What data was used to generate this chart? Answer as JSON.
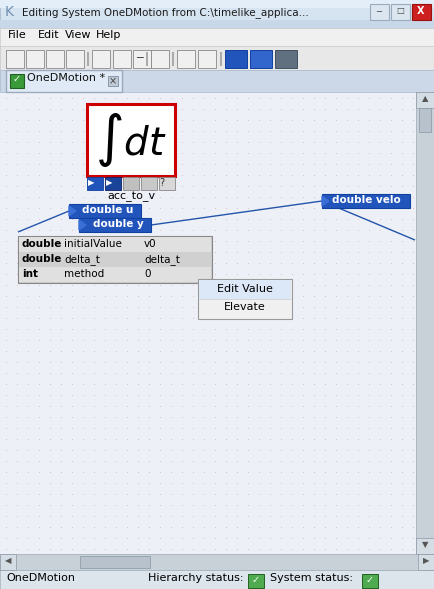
{
  "title_bar": "Editing System OneDMotion from C:\\timelike_applica...",
  "menu_items": [
    "File",
    "Edit",
    "View",
    "Help"
  ],
  "tab_label": "OneDMotion *",
  "block_label": "acc_to_v",
  "port_labels": [
    "double u",
    "double y"
  ],
  "param_rows": [
    [
      "double",
      "initialValue",
      "v0"
    ],
    [
      "double",
      "delta_t",
      "delta_t"
    ],
    [
      "int",
      "method",
      "0"
    ]
  ],
  "menu_buttons": [
    "Edit Value",
    "Elevate"
  ],
  "output_port_label": "double velo",
  "status_bar_left": "OneDMotion",
  "status_bar_mid": "Hierarchy status:",
  "status_bar_right": "System status:",
  "titlebar_gradient_top": "#dce6f0",
  "titlebar_gradient_bot": "#b8cce0",
  "menu_bar_bg": "#f0f0f0",
  "toolbar_bg": "#e8e8e8",
  "tab_area_bg": "#dce8f4",
  "tab_bg": "#e8eff8",
  "canvas_bg": "#eef0f8",
  "dot_color": "#c88888",
  "scrollbar_bg": "#c8d0d8",
  "scrollbar_thumb": "#b0bac4",
  "block_border": "#cc0000",
  "block_bg": "#ffffff",
  "port_bg": "#2255bb",
  "port_fg": "#ffffff",
  "param_bg_even": "#e0e0e0",
  "param_bg_odd": "#d0d0d0",
  "param_border": "#888888",
  "ctx_bg": "#f0f0f0",
  "ctx_border": "#999999",
  "ctx_hover": "#dce8f8",
  "line_color": "#2255aa",
  "status_bg": "#dce4ec",
  "green_check_bg": "#50aa50",
  "close_btn_bg": "#cc2020",
  "win_btn_bg": "#dce4ee",
  "separator_color": "#aaaaaa"
}
